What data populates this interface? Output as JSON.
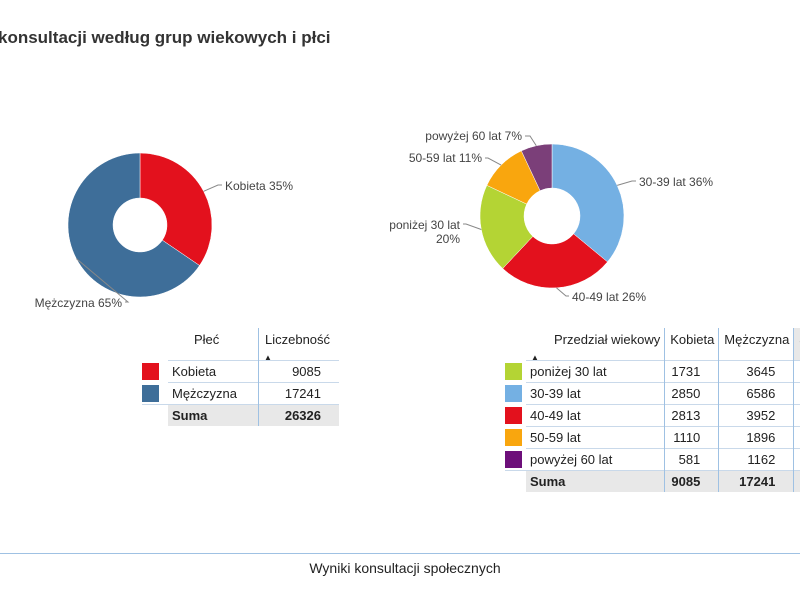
{
  "title": "konsultacji według grup wiekowych i płci",
  "footer": "Wyniki konsultacji społecznych",
  "chart_data": [
    {
      "type": "pie",
      "slices": [
        {
          "label": "Kobieta",
          "value": 9085,
          "percent_label": "Kobieta 35%",
          "color": "#e3111d"
        },
        {
          "label": "Mężczyzna",
          "value": 17241,
          "percent_label": "Mężczyzna 65%",
          "color": "#3e6e99"
        }
      ]
    },
    {
      "type": "pie",
      "slices": [
        {
          "label": "30-39 lat",
          "value": 36,
          "percent_label": "30-39 lat 36%",
          "color": "#74b0e3"
        },
        {
          "label": "40-49 lat",
          "value": 26,
          "percent_label": "40-49 lat 26%",
          "color": "#e3111d"
        },
        {
          "label": "poniżej 30 lat",
          "value": 20,
          "percent_label": "poniżej 30 lat",
          "percent_label_2": "20%",
          "color": "#b4d434"
        },
        {
          "label": "50-59 lat",
          "value": 11,
          "percent_label": "50-59 lat 11%",
          "color": "#f9a60e"
        },
        {
          "label": "powyżej 60 lat",
          "value": 7,
          "percent_label": "powyżej 60 lat 7%",
          "color": "#7b3f79"
        }
      ]
    }
  ],
  "gender_table": {
    "headers": [
      "Płeć",
      "Liczebność"
    ],
    "sort_icon": "▲",
    "rows": [
      {
        "label": "Kobieta",
        "value": "9085",
        "color": "#e3111d"
      },
      {
        "label": "Mężczyzna",
        "value": "17241",
        "color": "#3e6e99"
      }
    ],
    "sum": {
      "label": "Suma",
      "value": "26326"
    }
  },
  "age_table": {
    "headers": [
      "Przedział wiekowy",
      "Kobieta",
      "Mężczyzna",
      "S"
    ],
    "sort_icon": "▲",
    "rows": [
      {
        "label": "poniżej 30 lat",
        "kobieta": "1731",
        "mezczyzna": "3645",
        "color": "#b4d434"
      },
      {
        "label": "30-39 lat",
        "kobieta": "2850",
        "mezczyzna": "6586",
        "color": "#74b0e3"
      },
      {
        "label": "40-49 lat",
        "kobieta": "2813",
        "mezczyzna": "3952",
        "color": "#e3111d"
      },
      {
        "label": "50-59 lat",
        "kobieta": "1110",
        "mezczyzna": "1896",
        "color": "#f9a60e"
      },
      {
        "label": "powyżej 60 lat",
        "kobieta": "581",
        "mezczyzna": "1162",
        "color": "#6d0f7a"
      }
    ],
    "sum": {
      "label": "Suma",
      "kobieta": "9085",
      "mezczyzna": "17241",
      "suma_partial": "2"
    }
  }
}
